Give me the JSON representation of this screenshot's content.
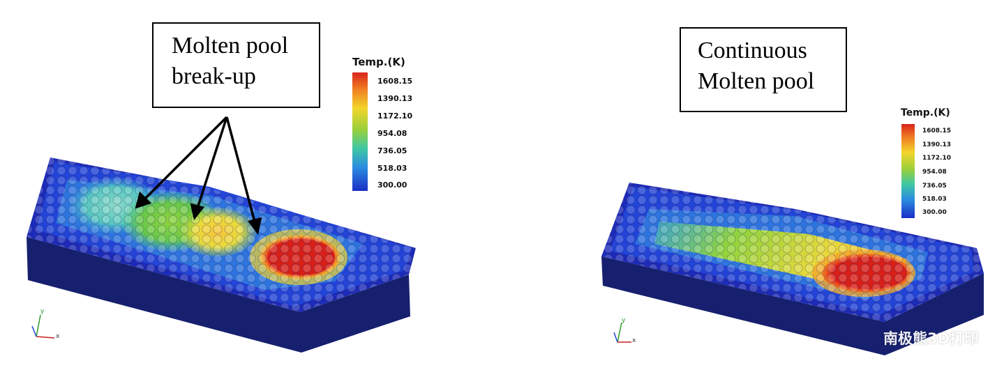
{
  "left_panel": {
    "callout": {
      "lines": [
        "Molten pool",
        "break-up"
      ]
    },
    "legend": {
      "title": "Temp.(K)",
      "ticks": [
        "1608.15",
        "1390.13",
        "1172.10",
        "954.08",
        "736.05",
        "518.03",
        "300.00"
      ]
    },
    "axes": {
      "y": "y",
      "x": "x"
    }
  },
  "right_panel": {
    "callout": {
      "lines": [
        "Continuous",
        "Molten pool"
      ]
    },
    "legend": {
      "title": "Temp.(K)",
      "ticks": [
        "1608.15",
        "1390.13",
        "1172.10",
        "954.08",
        "736.05",
        "518.03",
        "300.00"
      ]
    },
    "axes": {
      "y": "y",
      "x": "x"
    }
  },
  "colors": {
    "hot": "#d9241c",
    "orange": "#f07d22",
    "yellow": "#f3d52b",
    "green": "#9bd03a",
    "cyan": "#3fc7a4",
    "blue": "#2b8de0",
    "cold": "#1a2fc6"
  },
  "watermark": "南极熊3D打印"
}
